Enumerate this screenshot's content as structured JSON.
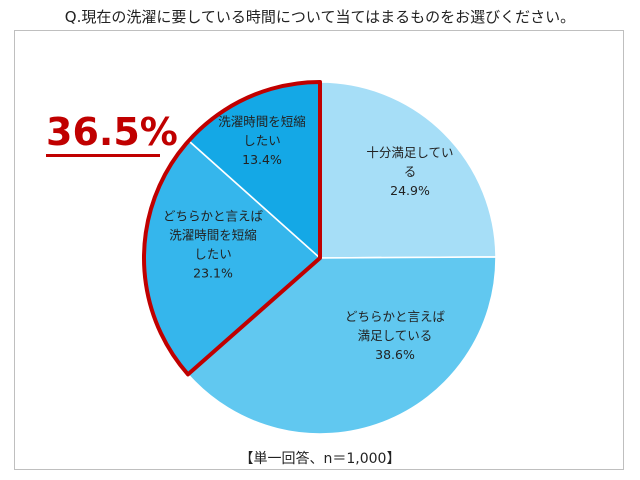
{
  "question": "Q.現在の洗濯に要している時間について当てはまるものをお選びください。",
  "highlight": {
    "text": "36.5%",
    "color": "#c00000"
  },
  "footnote": "【単一回答、n＝1,000】",
  "chart_data": {
    "type": "pie",
    "start": "12 o'clock",
    "direction": "clockwise",
    "slices": [
      {
        "label_lines": [
          "十分満足してい",
          "る"
        ],
        "value_label": "24.9%",
        "value": 24.9,
        "color": "#a6def7"
      },
      {
        "label_lines": [
          "どちらかと言えば",
          "満足している"
        ],
        "value_label": "38.6%",
        "value": 38.6,
        "color": "#61c8f0"
      },
      {
        "label_lines": [
          "どちらかと言えば",
          "洗濯時間を短縮",
          "したい"
        ],
        "value_label": "23.1%",
        "value": 23.1,
        "color": "#35b6ec"
      },
      {
        "label_lines": [
          "洗濯時間を短縮",
          "したい"
        ],
        "value_label": "13.4%",
        "value": 13.4,
        "color": "#14a8e6"
      }
    ],
    "highlighted_slices": [
      2,
      3
    ],
    "highlight_outline_color": "#c00000"
  }
}
